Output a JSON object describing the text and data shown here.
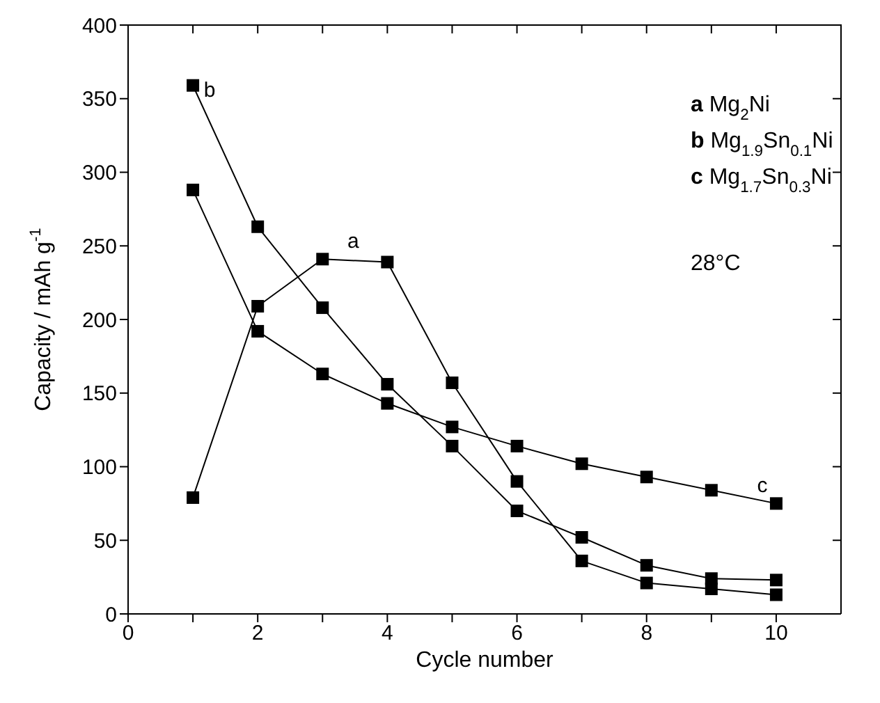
{
  "chart_data": {
    "type": "line",
    "xlabel": "Cycle number",
    "ylabel": "Capacity / mAh g$^{-1}$",
    "x": [
      1,
      2,
      3,
      4,
      5,
      6,
      7,
      8,
      9,
      10
    ],
    "series": [
      {
        "name": "a",
        "color": "#000000",
        "values": [
          79,
          209,
          241,
          239,
          157,
          90,
          36,
          21,
          17,
          13
        ]
      },
      {
        "name": "b",
        "color": "#000000",
        "values": [
          359,
          263,
          208,
          156,
          114,
          70,
          52,
          33,
          24,
          23
        ]
      },
      {
        "name": "c",
        "color": "#000000",
        "values": [
          288,
          192,
          163,
          143,
          127,
          114,
          102,
          93,
          84,
          75
        ]
      }
    ],
    "xlim": [
      0,
      11
    ],
    "xticks": [
      0,
      {
        "value": 1,
        "label": null
      },
      2,
      {
        "value": 3,
        "label": null
      },
      4,
      {
        "value": 5,
        "label": null
      },
      6,
      {
        "value": 7,
        "label": null
      },
      8,
      {
        "value": 9,
        "label": null
      },
      10
    ],
    "ylim": [
      0,
      400
    ],
    "yticks": [
      0,
      50,
      100,
      150,
      200,
      250,
      300,
      350,
      400
    ],
    "annotations": [
      "a Mg$_{2}$Ni",
      "b Mg$_{1.9}$Sn$_{0.1}$Ni",
      "c Mg$_{1.7}$Sn$_{0.3}$Ni",
      "28°C"
    ],
    "marker": "square",
    "line_style": "solid",
    "grid": false
  }
}
